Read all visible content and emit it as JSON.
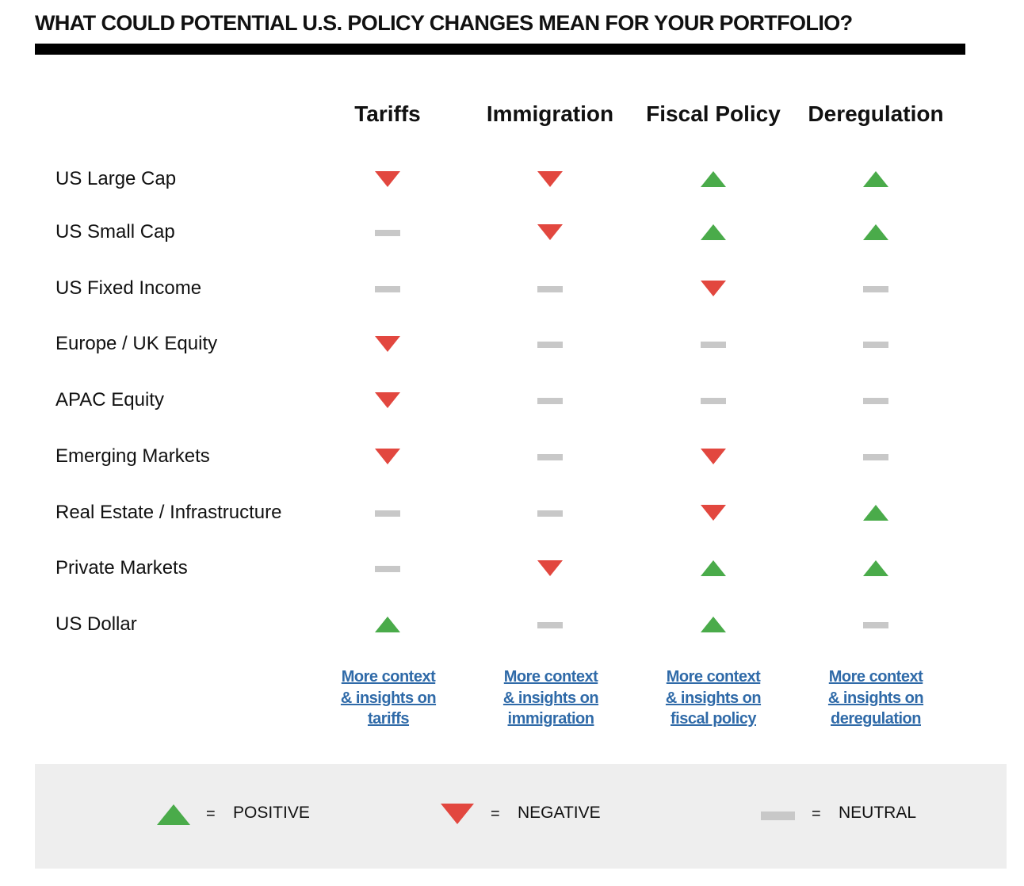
{
  "title": "WHAT COULD POTENTIAL U.S. POLICY CHANGES MEAN FOR YOUR PORTFOLIO?",
  "columns": [
    "Tariffs",
    "Immigration",
    "Fiscal Policy",
    "Deregulation"
  ],
  "rows": [
    {
      "label": "US Large Cap",
      "impacts": [
        "negative",
        "negative",
        "positive",
        "positive"
      ]
    },
    {
      "label": "US Small Cap",
      "impacts": [
        "neutral",
        "negative",
        "positive",
        "positive"
      ]
    },
    {
      "label": "US Fixed Income",
      "impacts": [
        "neutral",
        "neutral",
        "negative",
        "neutral"
      ]
    },
    {
      "label": "Europe / UK Equity",
      "impacts": [
        "negative",
        "neutral",
        "neutral",
        "neutral"
      ]
    },
    {
      "label": "APAC Equity",
      "impacts": [
        "negative",
        "neutral",
        "neutral",
        "neutral"
      ]
    },
    {
      "label": "Emerging Markets",
      "impacts": [
        "negative",
        "neutral",
        "negative",
        "neutral"
      ]
    },
    {
      "label": "Real Estate / Infrastructure",
      "impacts": [
        "neutral",
        "neutral",
        "negative",
        "positive"
      ]
    },
    {
      "label": "Private Markets",
      "impacts": [
        "neutral",
        "negative",
        "positive",
        "positive"
      ]
    },
    {
      "label": "US Dollar",
      "impacts": [
        "positive",
        "neutral",
        "positive",
        "neutral"
      ]
    }
  ],
  "links": [
    {
      "line1": "More context",
      "line2": "& insights on",
      "line3": "tariffs"
    },
    {
      "line1": "More context",
      "line2": "& insights on",
      "line3": "immigration"
    },
    {
      "line1": "More context",
      "line2": "& insights on",
      "line3": "fiscal policy"
    },
    {
      "line1": "More context",
      "line2": "& insights on",
      "line3": "deregulation"
    }
  ],
  "legend": {
    "positive": {
      "equals": "=",
      "label": "POSITIVE"
    },
    "negative": {
      "equals": "=",
      "label": "NEGATIVE"
    },
    "neutral": {
      "equals": "=",
      "label": "NEUTRAL"
    }
  },
  "colors": {
    "positive": "#4aab4a",
    "negative": "#e2473f",
    "neutral": "#c8c8c8",
    "link": "#2f6aa8"
  }
}
